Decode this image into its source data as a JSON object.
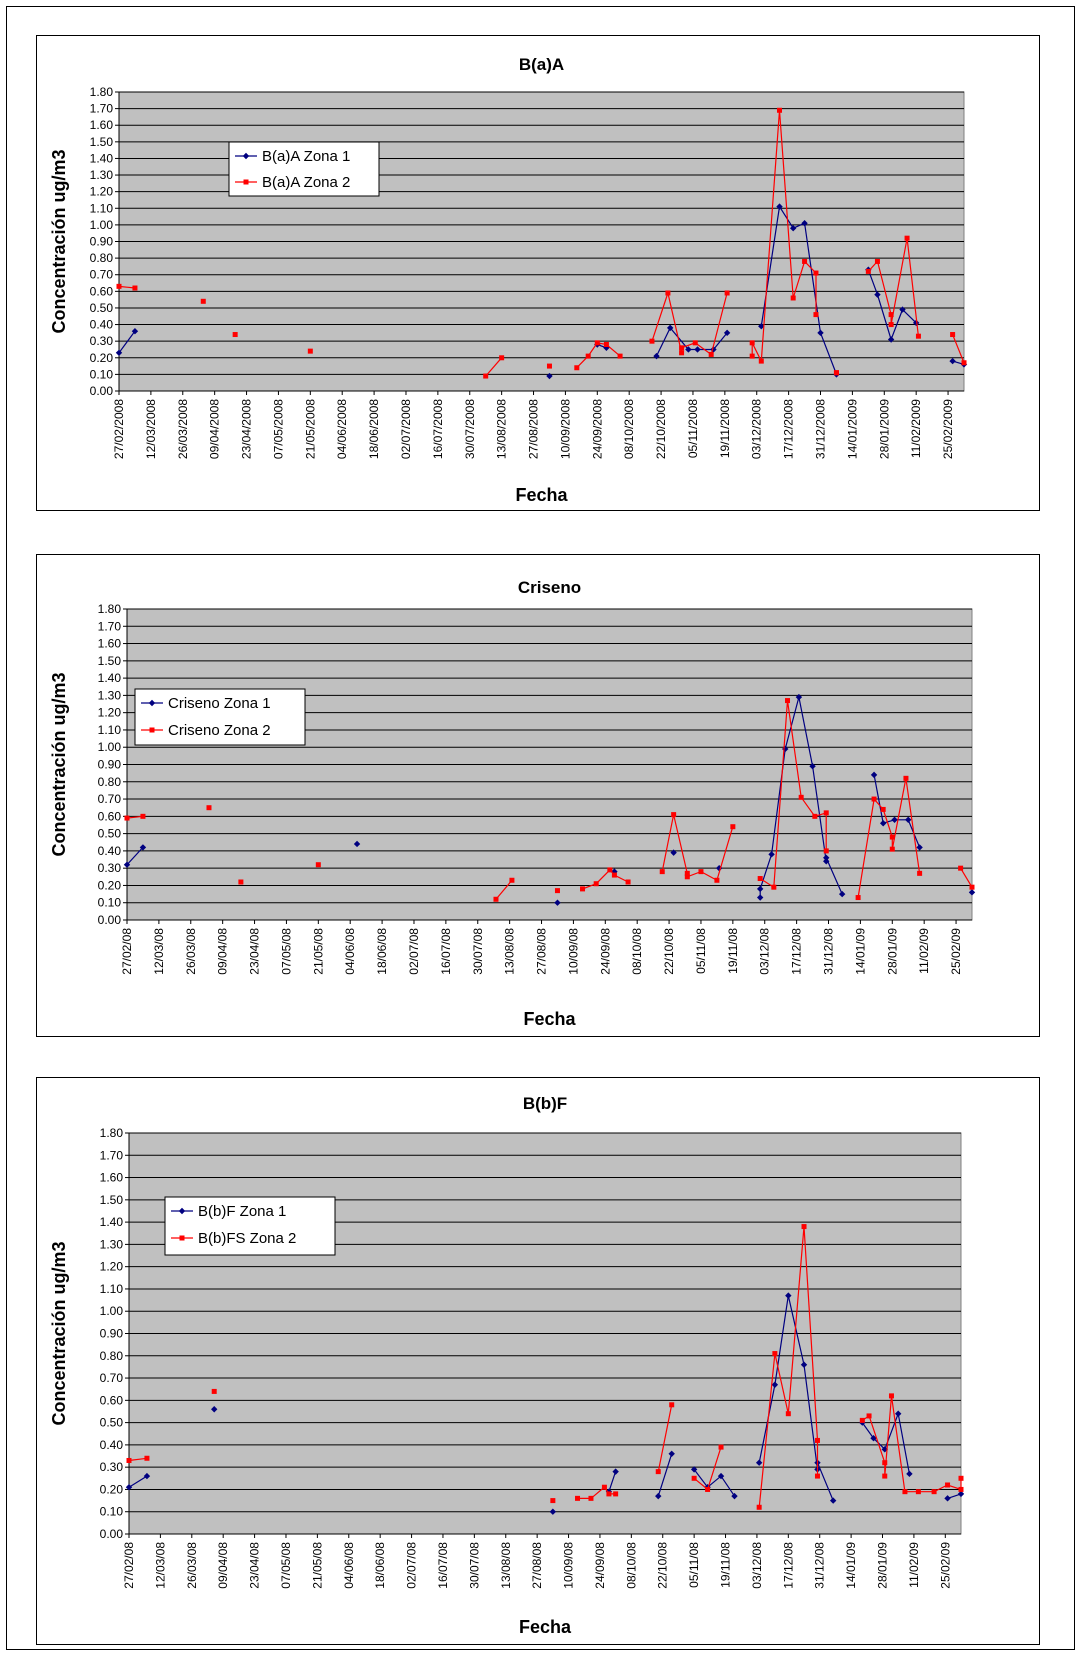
{
  "chart_data": [
    {
      "type": "line",
      "title": "B(a)A",
      "xlabel": "Fecha",
      "ylabel": "Concentración ug/m3",
      "ylim": [
        0,
        1.8
      ],
      "ytick_step": 0.1,
      "grid": true,
      "legend_placement": "upper-left",
      "x_range": [
        "2008-02-27",
        "2009-03-04"
      ],
      "xtick_labels": [
        "27/02/2008",
        "12/03/2008",
        "26/03/2008",
        "09/04/2008",
        "23/04/2008",
        "07/05/2008",
        "21/05/2008",
        "04/06/2008",
        "18/06/2008",
        "02/07/2008",
        "16/07/2008",
        "30/07/2008",
        "13/08/2008",
        "27/08/2008",
        "10/09/2008",
        "24/09/2008",
        "08/10/2008",
        "22/10/2008",
        "05/11/2008",
        "19/11/2008",
        "03/12/2008",
        "17/12/2008",
        "31/12/2008",
        "14/01/2009",
        "28/01/2009",
        "11/02/2009",
        "25/02/2009"
      ],
      "series": [
        {
          "name": "B(a)A Zona 1",
          "color": "#000080",
          "marker": "diamond",
          "x": [
            "2008-02-27",
            "2008-03-05",
            null,
            "2008-09-03",
            null,
            "2008-09-24",
            "2008-09-28",
            null,
            "2008-10-20",
            "2008-10-26",
            "2008-11-03",
            "2008-11-07",
            "2008-11-14",
            "2008-11-20",
            null,
            "2008-12-05",
            "2008-12-13",
            "2008-12-19",
            "2008-12-24",
            "2008-12-31",
            "2009-01-07",
            null,
            "2009-01-21",
            "2009-01-25",
            "2009-01-31",
            "2009-02-05",
            "2009-02-11",
            null,
            "2009-02-27",
            "2009-03-04"
          ],
          "y": [
            0.23,
            0.36,
            null,
            0.09,
            null,
            0.28,
            0.26,
            null,
            0.21,
            0.38,
            0.25,
            0.25,
            0.25,
            0.35,
            null,
            0.39,
            1.11,
            0.98,
            1.01,
            0.35,
            0.1,
            null,
            0.73,
            0.58,
            0.31,
            0.49,
            0.41,
            null,
            0.18,
            0.16
          ]
        },
        {
          "name": "B(a)A Zona 2",
          "color": "#FF0000",
          "marker": "square",
          "x": [
            "2008-02-27",
            "2008-03-05",
            null,
            "2008-04-04",
            null,
            "2008-04-18",
            null,
            "2008-05-21",
            null,
            "2008-08-06",
            "2008-08-13",
            null,
            "2008-09-03",
            null,
            "2008-09-15",
            "2008-09-20",
            "2008-09-24",
            "2008-09-28",
            "2008-10-04",
            null,
            "2008-10-18",
            "2008-10-25",
            "2008-10-31",
            "2008-10-31",
            "2008-11-06",
            "2008-11-13",
            "2008-11-20",
            null,
            "2008-12-01",
            "2008-12-01",
            "2008-12-05",
            "2008-12-13",
            "2008-12-19",
            "2008-12-24",
            "2008-12-29",
            "2008-12-29",
            null,
            "2009-01-07",
            "2009-01-07",
            null,
            "2009-01-21",
            "2009-01-25",
            "2009-01-31",
            "2009-01-31",
            "2009-02-07",
            "2009-02-12",
            null,
            "2009-02-27",
            "2009-03-04"
          ],
          "y": [
            0.63,
            0.62,
            null,
            0.54,
            null,
            0.34,
            null,
            0.24,
            null,
            0.09,
            0.2,
            null,
            0.15,
            null,
            0.14,
            0.21,
            0.29,
            0.28,
            0.21,
            null,
            0.3,
            0.59,
            0.23,
            0.26,
            0.29,
            0.22,
            0.59,
            null,
            0.21,
            0.29,
            0.18,
            1.69,
            0.56,
            0.78,
            0.71,
            0.46,
            null,
            0.11,
            0.11,
            null,
            0.72,
            0.78,
            0.46,
            0.4,
            0.92,
            0.33,
            null,
            0.34,
            0.17
          ]
        }
      ]
    },
    {
      "type": "line",
      "title": "Criseno",
      "xlabel": "Fecha",
      "ylabel": "Concentración ug/m3",
      "ylim": [
        0,
        1.8
      ],
      "ytick_step": 0.1,
      "grid": true,
      "legend_placement": "left",
      "x_range": [
        "2008-02-27",
        "2009-03-04"
      ],
      "xtick_labels": [
        "27/02/08",
        "12/03/08",
        "26/03/08",
        "09/04/08",
        "23/04/08",
        "07/05/08",
        "21/05/08",
        "04/06/08",
        "18/06/08",
        "02/07/08",
        "16/07/08",
        "30/07/08",
        "13/08/08",
        "27/08/08",
        "10/09/08",
        "24/09/08",
        "08/10/08",
        "22/10/08",
        "05/11/08",
        "19/11/08",
        "03/12/08",
        "17/12/08",
        "31/12/08",
        "14/01/09",
        "28/01/09",
        "11/02/09",
        "25/02/09"
      ],
      "series": [
        {
          "name": "Criseno Zona 1",
          "color": "#000080",
          "marker": "diamond",
          "x": [
            "2008-02-27",
            "2008-03-05",
            null,
            "2008-06-07",
            null,
            "2008-09-03",
            null,
            "2008-09-28",
            null,
            "2008-10-24",
            null,
            "2008-11-13",
            null,
            "2008-12-01",
            "2008-12-01",
            "2008-12-06",
            "2008-12-12",
            "2008-12-18",
            "2008-12-24",
            "2008-12-30",
            "2008-12-30",
            "2009-01-06",
            null,
            "2009-01-20",
            "2009-01-24",
            "2009-01-29",
            "2009-02-04",
            "2009-02-09",
            null,
            "2009-03-04"
          ],
          "y": [
            0.32,
            0.42,
            null,
            0.44,
            null,
            0.1,
            null,
            0.28,
            null,
            0.39,
            null,
            0.3,
            null,
            0.13,
            0.18,
            0.38,
            0.99,
            1.29,
            0.89,
            0.34,
            0.36,
            0.15,
            null,
            0.84,
            0.56,
            0.58,
            0.58,
            0.42,
            null,
            0.16
          ]
        },
        {
          "name": "Criseno Zona 2",
          "color": "#FF0000",
          "marker": "square",
          "x": [
            "2008-02-27",
            "2008-03-05",
            null,
            "2008-04-03",
            null,
            "2008-04-17",
            null,
            "2008-05-21",
            null,
            "2008-08-07",
            "2008-08-14",
            null,
            "2008-09-03",
            null,
            "2008-09-14",
            "2008-09-20",
            "2008-09-26",
            "2008-09-28",
            "2008-10-04",
            null,
            "2008-10-19",
            "2008-10-24",
            "2008-10-30",
            "2008-10-30",
            "2008-11-05",
            "2008-11-12",
            "2008-11-19",
            null,
            "2008-12-01",
            "2008-12-07",
            "2008-12-13",
            "2008-12-19",
            "2008-12-25",
            "2008-12-30",
            "2008-12-30",
            null,
            "2009-01-13",
            "2009-01-20",
            "2009-01-24",
            "2009-01-28",
            "2009-01-28",
            "2009-02-03",
            "2009-02-09",
            null,
            "2009-02-27",
            "2009-03-04"
          ],
          "y": [
            0.59,
            0.6,
            null,
            0.65,
            null,
            0.22,
            null,
            0.32,
            null,
            0.12,
            0.23,
            null,
            0.17,
            null,
            0.18,
            0.21,
            0.29,
            0.26,
            0.22,
            null,
            0.28,
            0.61,
            0.27,
            0.25,
            0.28,
            0.23,
            0.54,
            null,
            0.24,
            0.19,
            1.27,
            0.71,
            0.6,
            0.62,
            0.4,
            null,
            0.13,
            0.7,
            0.64,
            0.48,
            0.41,
            0.82,
            0.27,
            null,
            0.3,
            0.19
          ]
        }
      ]
    },
    {
      "type": "line",
      "title": "B(b)F",
      "xlabel": "Fecha",
      "ylabel": "Concentración ug/m3",
      "ylim": [
        0,
        1.8
      ],
      "ytick_step": 0.1,
      "grid": true,
      "legend_placement": "left",
      "x_range": [
        "2008-02-27",
        "2009-03-04"
      ],
      "xtick_labels": [
        "27/02/08",
        "12/03/08",
        "26/03/08",
        "09/04/08",
        "23/04/08",
        "07/05/08",
        "21/05/08",
        "04/06/08",
        "18/06/08",
        "02/07/08",
        "16/07/08",
        "30/07/08",
        "13/08/08",
        "27/08/08",
        "10/09/08",
        "24/09/08",
        "08/10/08",
        "22/10/08",
        "05/11/08",
        "19/11/08",
        "03/12/08",
        "17/12/08",
        "31/12/08",
        "14/01/09",
        "28/01/09",
        "11/02/09",
        "25/02/09"
      ],
      "series": [
        {
          "name": "B(b)F Zona 1",
          "color": "#000080",
          "marker": "diamond",
          "x": [
            "2008-02-27",
            "2008-03-06",
            null,
            "2008-04-05",
            null,
            "2008-09-03",
            null,
            "2008-09-28",
            "2008-10-01",
            null,
            "2008-10-20",
            "2008-10-26",
            null,
            "2008-11-05",
            "2008-11-11",
            "2008-11-17",
            "2008-11-23",
            null,
            "2008-12-04",
            "2008-12-11",
            "2008-12-17",
            "2008-12-24",
            "2008-12-30",
            "2008-12-30",
            "2009-01-06",
            null,
            "2009-01-19",
            "2009-01-24",
            "2009-01-29",
            "2009-02-04",
            "2009-02-09",
            null,
            "2009-02-26",
            "2009-03-04"
          ],
          "y": [
            0.21,
            0.26,
            null,
            0.56,
            null,
            0.1,
            null,
            0.19,
            0.28,
            null,
            0.17,
            0.36,
            null,
            0.29,
            0.21,
            0.26,
            0.17,
            null,
            0.32,
            0.67,
            1.07,
            0.76,
            0.29,
            0.32,
            0.15,
            null,
            0.5,
            0.43,
            0.38,
            0.54,
            0.27,
            null,
            0.16,
            0.18
          ]
        },
        {
          "name": "B(b)FS Zona 2",
          "color": "#FF0000",
          "marker": "square",
          "x": [
            "2008-02-27",
            "2008-03-06",
            null,
            "2008-04-05",
            null,
            "2008-09-03",
            null,
            "2008-09-14",
            "2008-09-20",
            "2008-09-26",
            "2008-09-28",
            "2008-10-01",
            null,
            "2008-10-20",
            "2008-10-26",
            null,
            "2008-11-05",
            "2008-11-11",
            "2008-11-17",
            null,
            "2008-12-04",
            "2008-12-11",
            "2008-12-17",
            "2008-12-24",
            "2008-12-30",
            "2008-12-30",
            null,
            "2009-01-19",
            "2009-01-22",
            "2009-01-29",
            "2009-01-29",
            "2009-02-01",
            "2009-02-07",
            "2009-02-13",
            "2009-02-20",
            "2009-02-26",
            "2009-03-04",
            "2009-03-04"
          ],
          "y": [
            0.33,
            0.34,
            null,
            0.64,
            null,
            0.15,
            null,
            0.16,
            0.16,
            0.21,
            0.18,
            0.18,
            null,
            0.28,
            0.58,
            null,
            0.25,
            0.2,
            0.39,
            null,
            0.12,
            0.81,
            0.54,
            1.38,
            0.42,
            0.26,
            null,
            0.51,
            0.53,
            0.32,
            0.26,
            0.62,
            0.19,
            0.19,
            0.19,
            0.22,
            0.2,
            0.25
          ]
        }
      ]
    }
  ]
}
